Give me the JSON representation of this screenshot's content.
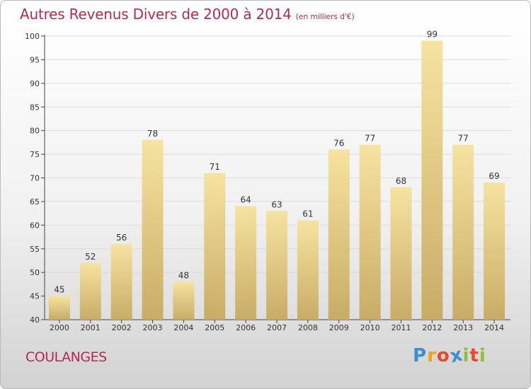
{
  "title": "Autres Revenus Divers de 2000 à 2014",
  "unit_note": "(en milliers d'€)",
  "commune": "COULANGES",
  "logo": {
    "text": "Proxiti",
    "letters": [
      {
        "ch": "P",
        "color": "#3a8fd0"
      },
      {
        "ch": "r",
        "color": "#f2a21a"
      },
      {
        "ch": "o",
        "color": "#e8492c"
      },
      {
        "ch": "x",
        "color": "#3a8fd0"
      },
      {
        "ch": "i",
        "color": "#8dbf3e"
      },
      {
        "ch": "t",
        "color": "#e8492c"
      },
      {
        "ch": "i",
        "color": "#8dbf3e"
      }
    ]
  },
  "colors": {
    "bar_light": "#f6e3a0",
    "bar_dark": "#c8ac66",
    "axis": "#444444",
    "grid": "#dcdcdc",
    "title": "#b42a52"
  },
  "chart_data": {
    "type": "bar",
    "title": "Autres Revenus Divers de 2000 à 2014",
    "ylabel": "",
    "xlabel": "",
    "categories": [
      "2000",
      "2001",
      "2002",
      "2003",
      "2004",
      "2005",
      "2006",
      "2007",
      "2008",
      "2009",
      "2010",
      "2011",
      "2012",
      "2013",
      "2014"
    ],
    "values": [
      45,
      52,
      56,
      78,
      48,
      71,
      64,
      63,
      61,
      76,
      77,
      68,
      99,
      77,
      69
    ],
    "ylim": [
      40,
      100
    ],
    "yticks": [
      40,
      45,
      50,
      55,
      60,
      65,
      70,
      75,
      80,
      85,
      90,
      95,
      100
    ],
    "grid": true
  }
}
